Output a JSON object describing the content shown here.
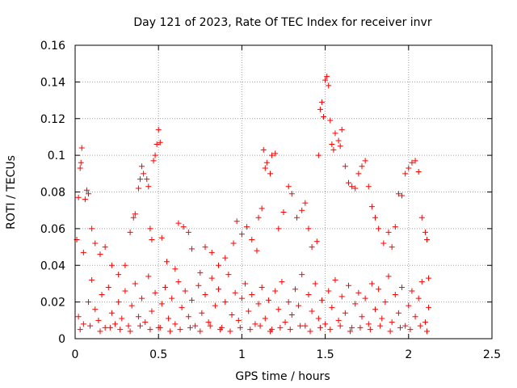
{
  "chart_data": {
    "type": "scatter",
    "title": "Day 121 of 2023, Rate Of TEC Index for receiver invr",
    "xlabel": "GPS time / hours",
    "ylabel": "ROTI / TECUs",
    "xlim": [
      0,
      2.5
    ],
    "ylim": [
      0,
      0.16
    ],
    "x_ticks": [
      0,
      0.5,
      1,
      1.5,
      2,
      2.5
    ],
    "x_tick_labels": [
      "0",
      "0.5",
      "1",
      "1.5",
      "2",
      "2.5"
    ],
    "y_ticks": [
      0,
      0.02,
      0.04,
      0.06,
      0.08,
      0.1,
      0.12,
      0.14,
      0.16
    ],
    "y_tick_labels": [
      "0",
      "0.02",
      "0.04",
      "0.06",
      "0.08",
      "0.1",
      "0.12",
      "0.14",
      "0.16"
    ],
    "grid": true,
    "marker": "+",
    "marker_color": "#ff0000",
    "series": [
      {
        "name": "ROTI",
        "points": [
          [
            0.01,
            0.054
          ],
          [
            0.02,
            0.077
          ],
          [
            0.03,
            0.093
          ],
          [
            0.035,
            0.096
          ],
          [
            0.04,
            0.104
          ],
          [
            0.05,
            0.047
          ],
          [
            0.06,
            0.076
          ],
          [
            0.07,
            0.081
          ],
          [
            0.08,
            0.079
          ],
          [
            0.1,
            0.06
          ],
          [
            0.12,
            0.052
          ],
          [
            0.15,
            0.046
          ],
          [
            0.18,
            0.05
          ],
          [
            0.22,
            0.04
          ],
          [
            0.26,
            0.035
          ],
          [
            0.3,
            0.04
          ],
          [
            0.33,
            0.058
          ],
          [
            0.35,
            0.066
          ],
          [
            0.36,
            0.068
          ],
          [
            0.38,
            0.082
          ],
          [
            0.39,
            0.087
          ],
          [
            0.4,
            0.094
          ],
          [
            0.41,
            0.09
          ],
          [
            0.43,
            0.087
          ],
          [
            0.44,
            0.083
          ],
          [
            0.45,
            0.06
          ],
          [
            0.46,
            0.054
          ],
          [
            0.47,
            0.097
          ],
          [
            0.48,
            0.1
          ],
          [
            0.49,
            0.106
          ],
          [
            0.5,
            0.114
          ],
          [
            0.51,
            0.107
          ],
          [
            0.52,
            0.055
          ],
          [
            0.55,
            0.042
          ],
          [
            0.6,
            0.038
          ],
          [
            0.62,
            0.063
          ],
          [
            0.65,
            0.061
          ],
          [
            0.68,
            0.058
          ],
          [
            0.7,
            0.049
          ],
          [
            0.75,
            0.036
          ],
          [
            0.78,
            0.05
          ],
          [
            0.82,
            0.047
          ],
          [
            0.86,
            0.04
          ],
          [
            0.9,
            0.044
          ],
          [
            0.95,
            0.052
          ],
          [
            0.97,
            0.064
          ],
          [
            1.0,
            0.057
          ],
          [
            1.03,
            0.061
          ],
          [
            1.06,
            0.054
          ],
          [
            1.09,
            0.048
          ],
          [
            1.1,
            0.066
          ],
          [
            1.12,
            0.071
          ],
          [
            1.13,
            0.103
          ],
          [
            1.14,
            0.093
          ],
          [
            1.15,
            0.096
          ],
          [
            1.17,
            0.09
          ],
          [
            1.18,
            0.1
          ],
          [
            1.2,
            0.101
          ],
          [
            1.22,
            0.06
          ],
          [
            1.25,
            0.069
          ],
          [
            1.28,
            0.083
          ],
          [
            1.3,
            0.079
          ],
          [
            1.33,
            0.066
          ],
          [
            1.36,
            0.07
          ],
          [
            1.38,
            0.074
          ],
          [
            1.4,
            0.06
          ],
          [
            1.42,
            0.05
          ],
          [
            1.45,
            0.053
          ],
          [
            1.46,
            0.1
          ],
          [
            1.47,
            0.125
          ],
          [
            1.48,
            0.129
          ],
          [
            1.49,
            0.121
          ],
          [
            1.5,
            0.141
          ],
          [
            1.51,
            0.143
          ],
          [
            1.52,
            0.138
          ],
          [
            1.53,
            0.119
          ],
          [
            1.54,
            0.106
          ],
          [
            1.55,
            0.103
          ],
          [
            1.56,
            0.112
          ],
          [
            1.58,
            0.108
          ],
          [
            1.59,
            0.105
          ],
          [
            1.6,
            0.114
          ],
          [
            1.62,
            0.094
          ],
          [
            1.64,
            0.085
          ],
          [
            1.66,
            0.083
          ],
          [
            1.68,
            0.082
          ],
          [
            1.7,
            0.09
          ],
          [
            1.72,
            0.094
          ],
          [
            1.74,
            0.097
          ],
          [
            1.76,
            0.083
          ],
          [
            1.78,
            0.072
          ],
          [
            1.8,
            0.066
          ],
          [
            1.82,
            0.06
          ],
          [
            1.85,
            0.052
          ],
          [
            1.88,
            0.058
          ],
          [
            1.9,
            0.05
          ],
          [
            1.92,
            0.061
          ],
          [
            1.94,
            0.079
          ],
          [
            1.96,
            0.078
          ],
          [
            1.98,
            0.09
          ],
          [
            2.0,
            0.093
          ],
          [
            2.02,
            0.096
          ],
          [
            2.04,
            0.097
          ],
          [
            2.06,
            0.091
          ],
          [
            2.08,
            0.066
          ],
          [
            2.1,
            0.058
          ],
          [
            2.11,
            0.054
          ],
          [
            2.12,
            0.033
          ],
          [
            0.02,
            0.012
          ],
          [
            0.05,
            0.008
          ],
          [
            0.08,
            0.02
          ],
          [
            0.1,
            0.032
          ],
          [
            0.12,
            0.016
          ],
          [
            0.14,
            0.01
          ],
          [
            0.16,
            0.024
          ],
          [
            0.18,
            0.006
          ],
          [
            0.2,
            0.028
          ],
          [
            0.22,
            0.014
          ],
          [
            0.24,
            0.008
          ],
          [
            0.26,
            0.02
          ],
          [
            0.28,
            0.011
          ],
          [
            0.3,
            0.026
          ],
          [
            0.32,
            0.007
          ],
          [
            0.34,
            0.018
          ],
          [
            0.36,
            0.03
          ],
          [
            0.38,
            0.012
          ],
          [
            0.4,
            0.022
          ],
          [
            0.42,
            0.009
          ],
          [
            0.44,
            0.034
          ],
          [
            0.46,
            0.015
          ],
          [
            0.48,
            0.025
          ],
          [
            0.5,
            0.006
          ],
          [
            0.52,
            0.019
          ],
          [
            0.54,
            0.028
          ],
          [
            0.56,
            0.011
          ],
          [
            0.58,
            0.022
          ],
          [
            0.6,
            0.008
          ],
          [
            0.62,
            0.031
          ],
          [
            0.64,
            0.017
          ],
          [
            0.66,
            0.026
          ],
          [
            0.68,
            0.012
          ],
          [
            0.7,
            0.021
          ],
          [
            0.72,
            0.007
          ],
          [
            0.74,
            0.029
          ],
          [
            0.76,
            0.014
          ],
          [
            0.78,
            0.024
          ],
          [
            0.8,
            0.009
          ],
          [
            0.82,
            0.033
          ],
          [
            0.84,
            0.018
          ],
          [
            0.86,
            0.027
          ],
          [
            0.88,
            0.006
          ],
          [
            0.9,
            0.02
          ],
          [
            0.92,
            0.035
          ],
          [
            0.94,
            0.013
          ],
          [
            0.96,
            0.025
          ],
          [
            0.98,
            0.01
          ],
          [
            1.0,
            0.022
          ],
          [
            1.02,
            0.03
          ],
          [
            1.04,
            0.015
          ],
          [
            1.06,
            0.024
          ],
          [
            1.08,
            0.008
          ],
          [
            1.1,
            0.019
          ],
          [
            1.12,
            0.028
          ],
          [
            1.14,
            0.011
          ],
          [
            1.16,
            0.021
          ],
          [
            1.18,
            0.005
          ],
          [
            1.2,
            0.026
          ],
          [
            1.22,
            0.016
          ],
          [
            1.24,
            0.031
          ],
          [
            1.26,
            0.009
          ],
          [
            1.28,
            0.02
          ],
          [
            1.3,
            0.013
          ],
          [
            1.32,
            0.027
          ],
          [
            1.34,
            0.018
          ],
          [
            1.36,
            0.035
          ],
          [
            1.38,
            0.007
          ],
          [
            1.4,
            0.024
          ],
          [
            1.42,
            0.015
          ],
          [
            1.44,
            0.03
          ],
          [
            1.46,
            0.011
          ],
          [
            1.48,
            0.021
          ],
          [
            1.5,
            0.008
          ],
          [
            1.52,
            0.026
          ],
          [
            1.54,
            0.017
          ],
          [
            1.56,
            0.032
          ],
          [
            1.58,
            0.01
          ],
          [
            1.6,
            0.023
          ],
          [
            1.62,
            0.014
          ],
          [
            1.64,
            0.029
          ],
          [
            1.66,
            0.006
          ],
          [
            1.68,
            0.019
          ],
          [
            1.7,
            0.025
          ],
          [
            1.72,
            0.012
          ],
          [
            1.74,
            0.022
          ],
          [
            1.76,
            0.008
          ],
          [
            1.78,
            0.03
          ],
          [
            1.8,
            0.016
          ],
          [
            1.82,
            0.027
          ],
          [
            1.84,
            0.011
          ],
          [
            1.86,
            0.02
          ],
          [
            1.88,
            0.034
          ],
          [
            1.9,
            0.009
          ],
          [
            1.92,
            0.024
          ],
          [
            1.94,
            0.014
          ],
          [
            1.96,
            0.028
          ],
          [
            1.98,
            0.007
          ],
          [
            2.0,
            0.018
          ],
          [
            2.02,
            0.026
          ],
          [
            2.04,
            0.012
          ],
          [
            2.06,
            0.022
          ],
          [
            2.08,
            0.031
          ],
          [
            2.1,
            0.009
          ],
          [
            2.12,
            0.017
          ],
          [
            0.03,
            0.005
          ],
          [
            0.09,
            0.007
          ],
          [
            0.15,
            0.004
          ],
          [
            0.21,
            0.006
          ],
          [
            0.27,
            0.005
          ],
          [
            0.33,
            0.004
          ],
          [
            0.39,
            0.007
          ],
          [
            0.45,
            0.005
          ],
          [
            0.51,
            0.006
          ],
          [
            0.57,
            0.004
          ],
          [
            0.63,
            0.005
          ],
          [
            0.69,
            0.006
          ],
          [
            0.75,
            0.004
          ],
          [
            0.81,
            0.007
          ],
          [
            0.87,
            0.005
          ],
          [
            0.93,
            0.004
          ],
          [
            0.99,
            0.006
          ],
          [
            1.05,
            0.005
          ],
          [
            1.11,
            0.007
          ],
          [
            1.17,
            0.004
          ],
          [
            1.23,
            0.006
          ],
          [
            1.29,
            0.005
          ],
          [
            1.35,
            0.007
          ],
          [
            1.41,
            0.004
          ],
          [
            1.47,
            0.006
          ],
          [
            1.53,
            0.005
          ],
          [
            1.59,
            0.007
          ],
          [
            1.65,
            0.004
          ],
          [
            1.71,
            0.006
          ],
          [
            1.77,
            0.005
          ],
          [
            1.83,
            0.007
          ],
          [
            1.89,
            0.004
          ],
          [
            1.95,
            0.006
          ],
          [
            2.01,
            0.005
          ],
          [
            2.07,
            0.007
          ],
          [
            2.11,
            0.004
          ]
        ]
      }
    ]
  }
}
